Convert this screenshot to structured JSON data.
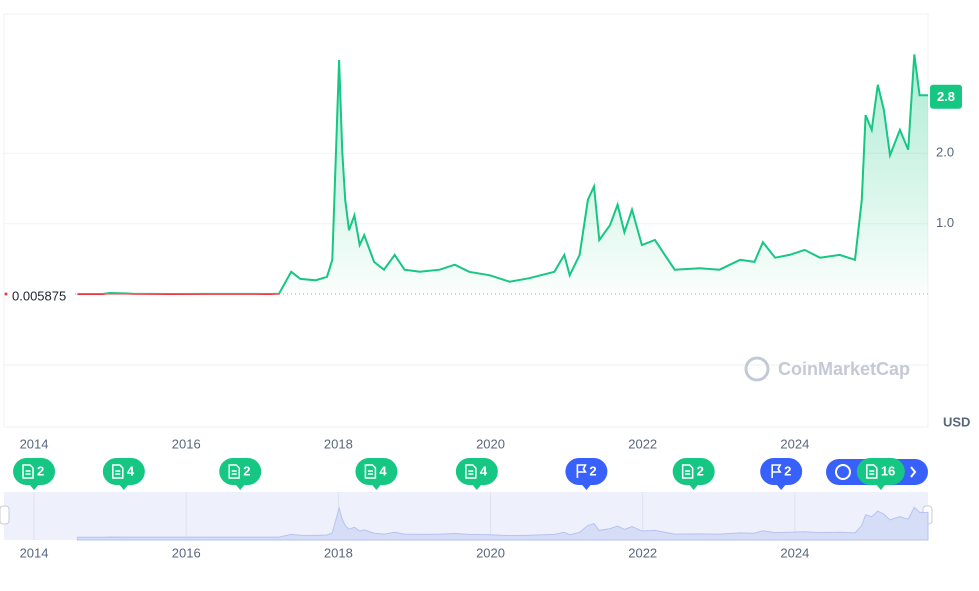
{
  "chart_data": {
    "type": "line",
    "color": "#16c784",
    "below_color": "#ea3943",
    "currency": "USD",
    "watermark": "CoinMarketCap",
    "reference": 0.005875,
    "current_price": 2.8,
    "x": [
      2014.57,
      2014.9,
      2015.0,
      2015.3,
      2015.8,
      2016.3,
      2016.8,
      2017.1,
      2017.22,
      2017.38,
      2017.5,
      2017.7,
      2017.85,
      2017.92,
      2018.01,
      2018.05,
      2018.09,
      2018.14,
      2018.21,
      2018.28,
      2018.34,
      2018.47,
      2018.6,
      2018.74,
      2018.87,
      2019.07,
      2019.33,
      2019.53,
      2019.72,
      2019.99,
      2020.25,
      2020.51,
      2020.84,
      2020.97,
      2021.04,
      2021.17,
      2021.28,
      2021.36,
      2021.43,
      2021.57,
      2021.67,
      2021.76,
      2021.86,
      2021.99,
      2022.16,
      2022.29,
      2022.42,
      2022.75,
      2023.01,
      2023.28,
      2023.47,
      2023.58,
      2023.74,
      2023.93,
      2024.13,
      2024.33,
      2024.59,
      2024.79,
      2024.88,
      2024.93,
      2025.01,
      2025.09,
      2025.17,
      2025.25,
      2025.38,
      2025.49,
      2025.57,
      2025.64,
      2025.75
    ],
    "values": [
      0.005,
      0.005,
      0.02,
      0.01,
      0.006,
      0.007,
      0.007,
      0.006,
      0.01,
      0.32,
      0.22,
      0.2,
      0.25,
      0.49,
      3.32,
      2.04,
      1.34,
      0.91,
      1.12,
      0.7,
      0.84,
      0.46,
      0.35,
      0.56,
      0.35,
      0.32,
      0.35,
      0.42,
      0.32,
      0.27,
      0.18,
      0.23,
      0.32,
      0.56,
      0.27,
      0.56,
      1.34,
      1.53,
      0.77,
      0.98,
      1.27,
      0.88,
      1.2,
      0.7,
      0.77,
      0.56,
      0.35,
      0.37,
      0.35,
      0.49,
      0.46,
      0.74,
      0.52,
      0.56,
      0.63,
      0.52,
      0.56,
      0.49,
      1.34,
      2.54,
      2.33,
      2.97,
      2.61,
      1.97,
      2.33,
      2.05,
      3.4,
      2.82,
      2.82
    ],
    "xlim": [
      2013.605,
      2025.75
    ],
    "xticks": [
      2014,
      2016,
      2018,
      2020,
      2022,
      2024
    ],
    "ylim": [
      -1,
      4
    ],
    "yticks": [
      {
        "value": 1,
        "label": "1.0"
      },
      {
        "value": 2,
        "label": "2.0"
      }
    ],
    "grid": true,
    "events": [
      {
        "x": 2014.0,
        "count": 2,
        "icon": "doc"
      },
      {
        "x": 2015.18,
        "count": 4,
        "icon": "doc"
      },
      {
        "x": 2016.71,
        "count": 2,
        "icon": "doc"
      },
      {
        "x": 2018.5,
        "count": 4,
        "icon": "doc"
      },
      {
        "x": 2019.82,
        "count": 4,
        "icon": "doc"
      },
      {
        "x": 2021.26,
        "count": 2,
        "icon": "flag"
      },
      {
        "x": 2022.67,
        "count": 2,
        "icon": "doc"
      },
      {
        "x": 2023.82,
        "count": 2,
        "icon": "flag"
      },
      {
        "x": 2025.13,
        "count": 16,
        "icon": "doc"
      }
    ]
  }
}
